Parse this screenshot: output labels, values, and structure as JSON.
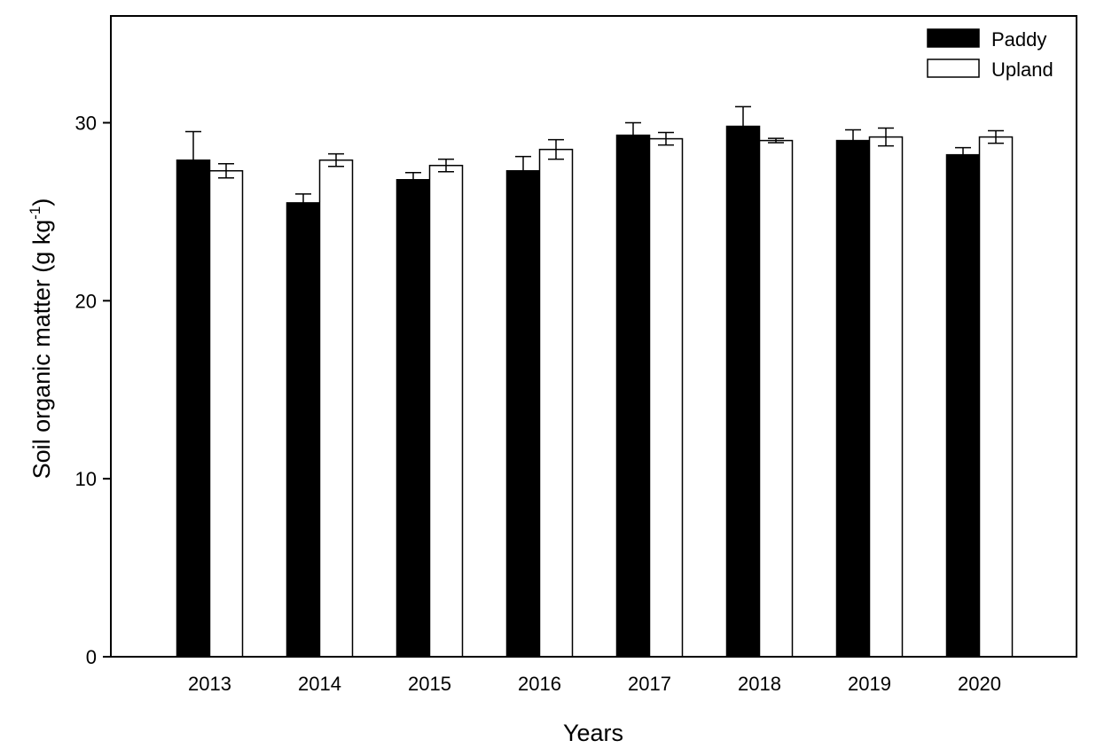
{
  "chart_data": {
    "type": "bar",
    "xlabel": "Years",
    "ylabel": {
      "main": "Soil organic matter (g kg",
      "superscript": "-1",
      "close": ")"
    },
    "categories": [
      "2013",
      "2014",
      "2015",
      "2016",
      "2017",
      "2018",
      "2019",
      "2020"
    ],
    "series": [
      {
        "name": "Paddy",
        "color": "#000000",
        "values": [
          27.9,
          25.5,
          26.8,
          27.3,
          29.3,
          29.8,
          29.0,
          28.2
        ],
        "errors": [
          1.6,
          0.5,
          0.4,
          0.8,
          0.7,
          1.1,
          0.6,
          0.4
        ]
      },
      {
        "name": "Upland",
        "color": "#ffffff",
        "values": [
          27.3,
          27.9,
          27.6,
          28.5,
          29.1,
          29.0,
          29.2,
          29.2
        ],
        "errors": [
          0.4,
          0.35,
          0.35,
          0.55,
          0.35,
          0.12,
          0.5,
          0.35
        ]
      }
    ],
    "yticks": [
      "0",
      "10",
      "20",
      "30"
    ],
    "ylim": [
      0,
      36
    ],
    "legend_position": "top-right",
    "grid": false
  }
}
